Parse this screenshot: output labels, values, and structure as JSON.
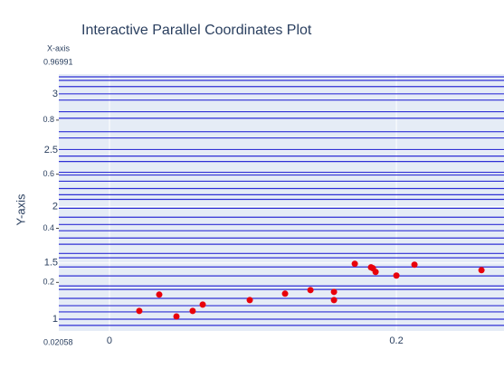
{
  "chart_data": [
    {
      "type": "parcoords",
      "title": "Interactive Parallel Coordinates Plot",
      "axis_label": "X-axis",
      "range": [
        0.96991,
        0.02058
      ],
      "ticks": [
        0.2,
        0.4,
        0.6,
        0.8
      ],
      "color": "#0000cc",
      "values": [
        0.96,
        0.947,
        0.924,
        0.897,
        0.874,
        0.831,
        0.807,
        0.757,
        0.734,
        0.691,
        0.667,
        0.647,
        0.607,
        0.597,
        0.574,
        0.547,
        0.524,
        0.507,
        0.474,
        0.441,
        0.414,
        0.391,
        0.364,
        0.341,
        0.307,
        0.291,
        0.257,
        0.224,
        0.187,
        0.174,
        0.141,
        0.114,
        0.091,
        0.064,
        0.041
      ]
    },
    {
      "type": "scatter",
      "ylabel": "Y-axis",
      "color": "#e8000b",
      "grid": true,
      "xlim": [
        -0.0353,
        0.275
      ],
      "xticks": [
        0,
        0.2
      ],
      "ylim": [
        0.895,
        3.177
      ],
      "yticks": [
        1,
        1.5,
        2,
        2.5,
        3
      ],
      "x": [
        0.0208,
        0.0347,
        0.0467,
        0.058,
        0.065,
        0.0978,
        0.1224,
        0.1401,
        0.1565,
        0.1565,
        0.171,
        0.1823,
        0.1836,
        0.1855,
        0.2,
        0.2126,
        0.2593
      ],
      "y": [
        1.073,
        1.218,
        1.024,
        1.073,
        1.129,
        1.169,
        1.226,
        1.258,
        1.242,
        1.169,
        1.492,
        1.46,
        1.452,
        1.419,
        1.387,
        1.484,
        1.435
      ]
    }
  ]
}
